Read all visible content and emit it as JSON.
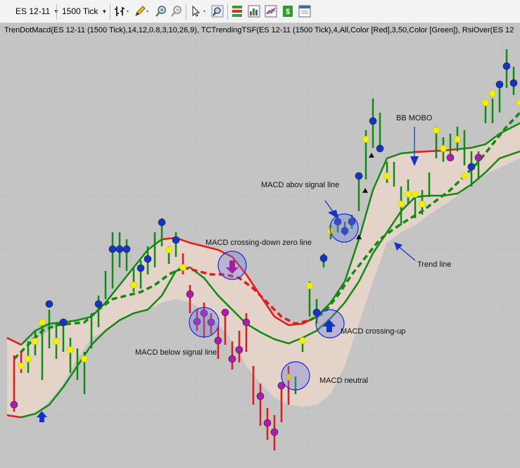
{
  "toolbar": {
    "instrument": "ES 12-11",
    "interval": "1500 Tick",
    "icons": [
      "bar-type-icon",
      "pencil-draw-icon",
      "zoom-in-icon",
      "zoom-out-icon",
      "cursor-pointer-icon",
      "magnifier-icon",
      "data-box-icon",
      "chart-properties-icon",
      "strategy-icon",
      "money-icon",
      "properties-window-icon"
    ]
  },
  "indicator_text": "TrenDotMacd(ES 12-11 (1500 Tick),14,12,0.8,3,10,26,9), TCTrendingTSF(ES 12-11 (1500 Tick),4,All,Color [Red],3,50,Color [Green]), RsiOver(ES 12",
  "annotations": {
    "bb_mobo": "BB MOBO",
    "macd_above": "MACD abov signal line",
    "macd_down_zero": "MACD crossing-down zero line",
    "trend_line": "Trend line",
    "macd_crossing_up": "MACD crossing-up",
    "macd_below": "MACD below signal line",
    "macd_neutral": "MACD neutral"
  },
  "colors": {
    "background": "#c4c4c4",
    "band_fill": "#e3d3c8",
    "up_bar": "#118a11",
    "down_bar": "#e81818",
    "trend_green": "#128a12",
    "trend_red": "#e61a1a",
    "dot_blue": "#1234c8",
    "dot_yellow": "#f2f200",
    "dot_magenta": "#b01ab0",
    "arrow_blue": "#1232c8"
  }
}
